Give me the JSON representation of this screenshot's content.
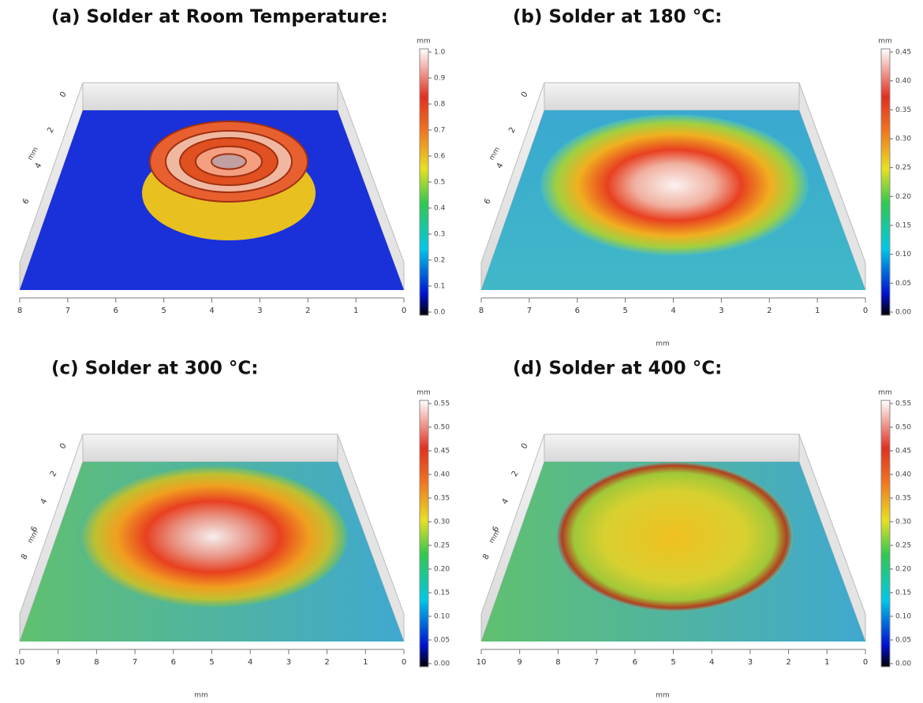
{
  "panels": [
    {
      "title": "(a)  Solder at Room Temperature:",
      "unit": "mm",
      "y_label": "mm",
      "colorbar_ticks": [
        "0.0",
        "0.1",
        "0.2",
        "0.3",
        "0.4",
        "0.5",
        "0.6",
        "0.7",
        "0.8",
        "0.9",
        "1.0"
      ],
      "x_ticks": [
        "8",
        "7",
        "6",
        "5",
        "4",
        "3",
        "2",
        "1",
        "0"
      ],
      "y_ticks": [
        "0",
        "2",
        "4",
        "6"
      ]
    },
    {
      "title": "(b)  Solder at 180 °C:",
      "unit": "mm",
      "y_label": "mm",
      "x_label": "mm",
      "colorbar_ticks": [
        "0.00",
        "0.05",
        "0.10",
        "0.15",
        "0.20",
        "0.25",
        "0.30",
        "0.35",
        "0.40",
        "0.45"
      ],
      "x_ticks": [
        "8",
        "7",
        "6",
        "5",
        "4",
        "3",
        "2",
        "1",
        "0"
      ],
      "y_ticks": [
        "0",
        "2",
        "4",
        "6"
      ]
    },
    {
      "title": "(c)  Solder at 300 °C:",
      "unit": "mm",
      "y_label": "mm",
      "x_label": "mm",
      "colorbar_ticks": [
        "0.00",
        "0.05",
        "0.10",
        "0.15",
        "0.20",
        "0.25",
        "0.30",
        "0.35",
        "0.40",
        "0.45",
        "0.50",
        "0.55"
      ],
      "x_ticks": [
        "10",
        "9",
        "8",
        "7",
        "6",
        "5",
        "4",
        "3",
        "2",
        "1",
        "0"
      ],
      "y_ticks": [
        "0",
        "2",
        "4",
        "6",
        "8"
      ]
    },
    {
      "title": "(d)  Solder at 400 °C:",
      "unit": "mm",
      "y_label": "mm",
      "x_label": "mm",
      "colorbar_ticks": [
        "0.00",
        "0.05",
        "0.10",
        "0.15",
        "0.20",
        "0.25",
        "0.30",
        "0.35",
        "0.40",
        "0.45",
        "0.50",
        "0.55"
      ],
      "x_ticks": [
        "10",
        "9",
        "8",
        "7",
        "6",
        "5",
        "4",
        "3",
        "2",
        "1",
        "0"
      ],
      "y_ticks": [
        "0",
        "2",
        "4",
        "6",
        "8"
      ]
    }
  ]
}
